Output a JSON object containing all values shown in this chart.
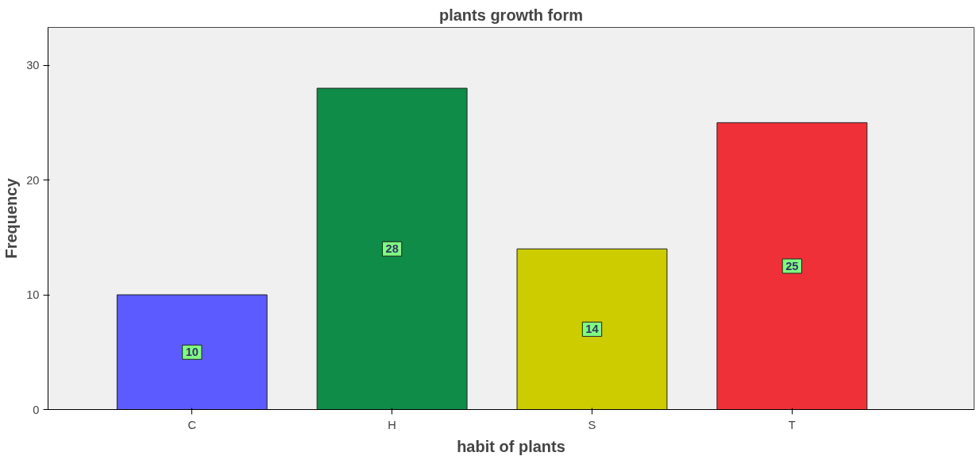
{
  "chart_data": {
    "type": "bar",
    "title": "plants growth form",
    "xlabel": "habit of plants",
    "ylabel": "Frequency",
    "categories": [
      "C",
      "H",
      "S",
      "T"
    ],
    "values": [
      10,
      28,
      14,
      25
    ],
    "colors": [
      "#5b5bff",
      "#0f8c48",
      "#cccc00",
      "#ef3038"
    ],
    "ylim": [
      0,
      33.3
    ],
    "yticks": [
      0,
      10,
      20,
      30
    ],
    "grid": false,
    "data_labels": true
  }
}
